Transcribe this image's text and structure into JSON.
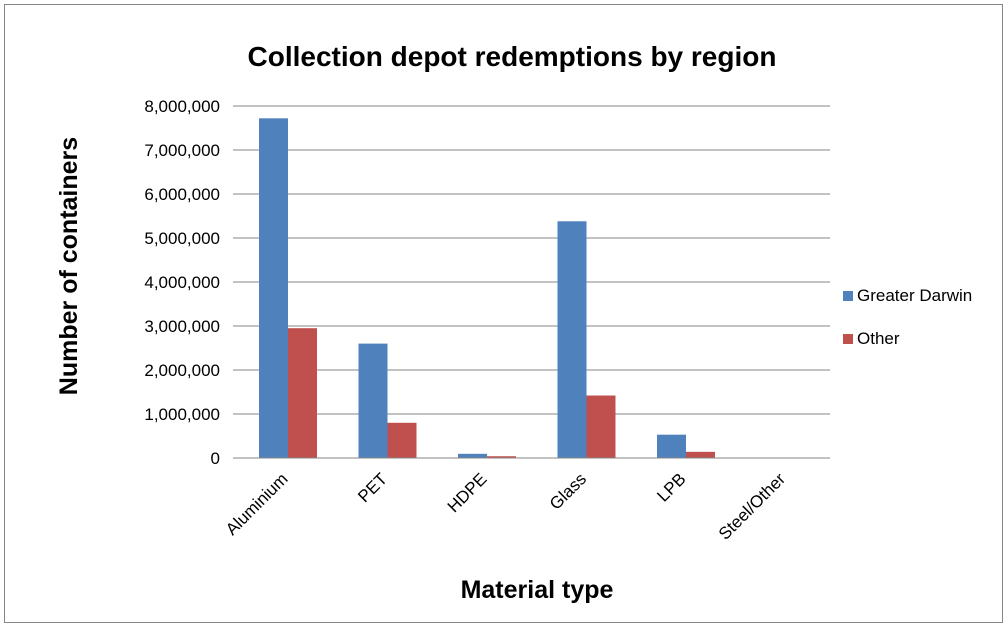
{
  "chart_data": {
    "type": "bar",
    "title": "Collection depot redemptions by region",
    "xlabel": "Material type",
    "ylabel": "Number of containers",
    "categories": [
      "Aluminium",
      "PET",
      "HDPE",
      "Glass",
      "LPB",
      "Steel/Other"
    ],
    "series": [
      {
        "name": "Greater Darwin",
        "color": "#4F81BD",
        "values": [
          7720000,
          2600000,
          95000,
          5380000,
          530000,
          5000
        ]
      },
      {
        "name": "Other",
        "color": "#C0504D",
        "values": [
          2950000,
          800000,
          40000,
          1420000,
          140000,
          2000
        ]
      }
    ],
    "ylim": [
      0,
      8000000
    ],
    "yticks": [
      0,
      1000000,
      2000000,
      3000000,
      4000000,
      5000000,
      6000000,
      7000000,
      8000000
    ],
    "ytick_labels": [
      "0",
      "1,000,000",
      "2,000,000",
      "3,000,000",
      "4,000,000",
      "5,000,000",
      "6,000,000",
      "7,000,000",
      "8,000,000"
    ],
    "grid": true,
    "legend_position": "right"
  }
}
